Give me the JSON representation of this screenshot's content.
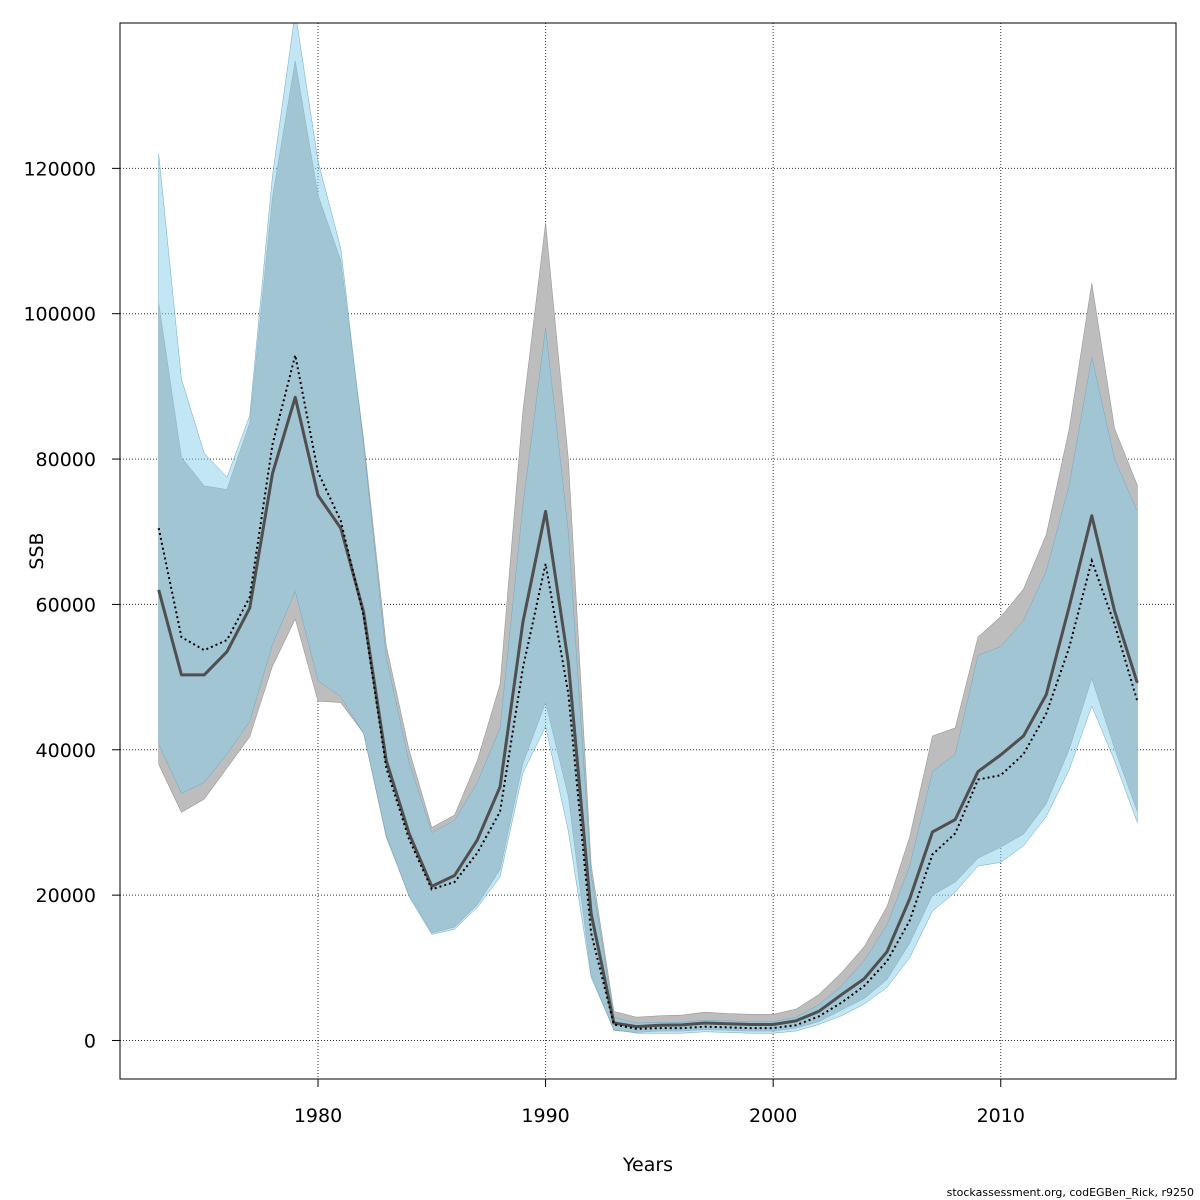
{
  "chart_data": {
    "type": "area",
    "xlabel": "Years",
    "ylabel": "SSB",
    "credit": "stockassessment.org, codEGBen_Rick, r9250",
    "xlim": [
      1971.3,
      2017.7
    ],
    "ylim": [
      -5300,
      140000
    ],
    "grid": true,
    "x_ticks": [
      1980,
      1990,
      2000,
      2010
    ],
    "y_ticks": [
      0,
      20000,
      40000,
      60000,
      80000,
      100000,
      120000
    ],
    "colors": {
      "band_gray": "#bdbdbd",
      "band_blue": "#87ceeb",
      "band_blue_opacity": 0.5,
      "line_solid": "#4f4f4f",
      "line_dotted": "#000000",
      "grid": "#333333"
    },
    "x": [
      1973,
      1974,
      1975,
      1976,
      1977,
      1978,
      1979,
      1980,
      1981,
      1982,
      1983,
      1984,
      1985,
      1986,
      1987,
      1988,
      1989,
      1990,
      1991,
      1992,
      1993,
      1994,
      1995,
      1996,
      1997,
      1998,
      1999,
      2000,
      2001,
      2002,
      2003,
      2004,
      2005,
      2006,
      2007,
      2008,
      2009,
      2010,
      2011,
      2012,
      2013,
      2014,
      2015,
      2016
    ],
    "series": [
      {
        "style": "solid",
        "values": [
          62000,
          50300,
          50300,
          53500,
          59500,
          78000,
          88500,
          75000,
          70500,
          59000,
          38500,
          28500,
          21200,
          22700,
          27600,
          34900,
          57500,
          72800,
          52000,
          17500,
          2400,
          1900,
          2100,
          2150,
          2400,
          2300,
          2200,
          2200,
          2700,
          4000,
          6300,
          8500,
          12200,
          19500,
          28700,
          30400,
          37000,
          39300,
          41900,
          47600,
          59600,
          72200,
          59100,
          49200
        ],
        "upper": [
          101500,
          80200,
          76300,
          75800,
          85000,
          116000,
          134800,
          116300,
          107300,
          82800,
          54300,
          40000,
          29300,
          31000,
          38500,
          49000,
          86500,
          112500,
          80000,
          24200,
          4000,
          3200,
          3400,
          3500,
          3900,
          3700,
          3600,
          3600,
          4300,
          6300,
          9300,
          12900,
          18400,
          28000,
          41900,
          43000,
          55500,
          58300,
          62100,
          69600,
          84000,
          104200,
          84200,
          76400
        ],
        "lower": [
          38000,
          31400,
          33200,
          37500,
          41800,
          51500,
          58000,
          46700,
          46500,
          42300,
          28000,
          20000,
          14800,
          15600,
          18700,
          23500,
          38100,
          46500,
          33600,
          9000,
          1400,
          1100,
          1300,
          1300,
          1500,
          1400,
          1300,
          1300,
          1700,
          2600,
          4200,
          5800,
          8400,
          13400,
          20000,
          21800,
          25100,
          26600,
          28400,
          32600,
          40000,
          49800,
          40200,
          31500
        ]
      },
      {
        "style": "dotted",
        "values": [
          70500,
          55500,
          53700,
          55100,
          61000,
          82000,
          94300,
          78200,
          71500,
          58500,
          37500,
          27700,
          20800,
          21800,
          25800,
          31500,
          51200,
          65600,
          47700,
          14800,
          2200,
          1600,
          1700,
          1700,
          1900,
          1800,
          1700,
          1700,
          2100,
          3300,
          5200,
          7500,
          10900,
          16500,
          25600,
          28500,
          35900,
          36500,
          39400,
          45000,
          54000,
          66000,
          57300,
          46700
        ],
        "upper": [
          122000,
          91000,
          80800,
          77500,
          86000,
          119000,
          141500,
          121000,
          109000,
          82000,
          52700,
          38300,
          28600,
          30300,
          35500,
          43000,
          73500,
          98000,
          70000,
          22800,
          3200,
          2400,
          2500,
          2500,
          2800,
          2700,
          2600,
          2600,
          3200,
          4900,
          7500,
          11000,
          15900,
          24000,
          37000,
          39400,
          53000,
          54200,
          57800,
          64600,
          76300,
          94000,
          80000,
          72800
        ],
        "lower": [
          40800,
          34000,
          35500,
          39400,
          43900,
          54500,
          61800,
          49500,
          47300,
          42300,
          28200,
          19800,
          14600,
          15300,
          18300,
          22500,
          36800,
          43200,
          28800,
          8700,
          1500,
          1000,
          1000,
          1000,
          1200,
          1100,
          1000,
          1000,
          1300,
          2200,
          3400,
          5000,
          7300,
          11400,
          17800,
          20400,
          24000,
          24500,
          26800,
          30800,
          37200,
          46000,
          38500,
          30000
        ]
      }
    ]
  }
}
